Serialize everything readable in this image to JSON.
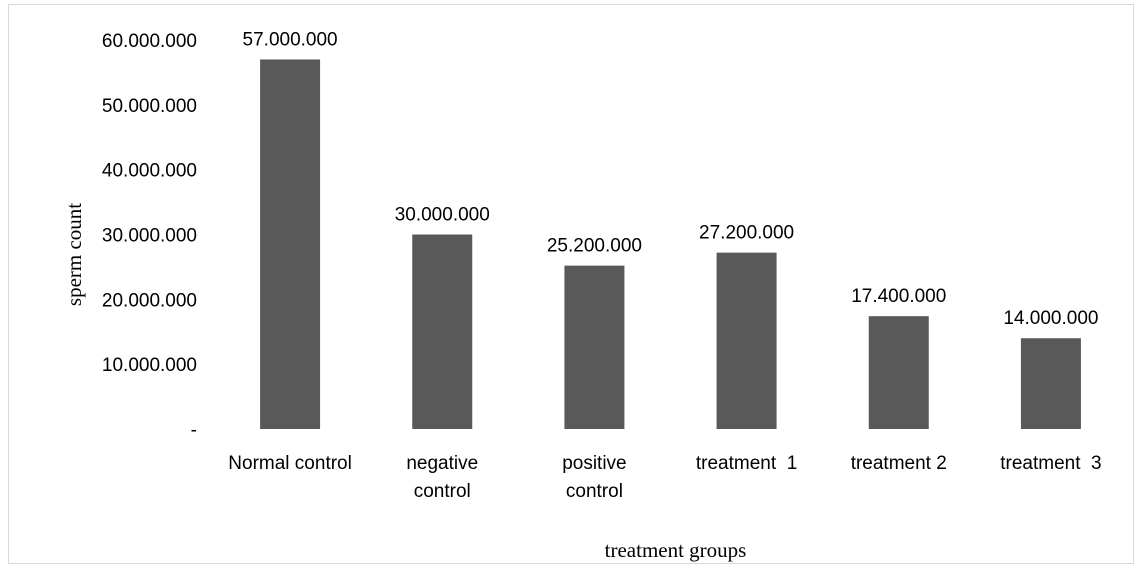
{
  "chart_data": {
    "type": "bar",
    "categories": [
      [
        "Normal control"
      ],
      [
        "negative",
        "control"
      ],
      [
        "positive",
        "control"
      ],
      [
        "treatment  1"
      ],
      [
        "treatment 2"
      ],
      [
        "treatment  3"
      ]
    ],
    "values": [
      57000000,
      30000000,
      25200000,
      27200000,
      17400000,
      14000000
    ],
    "data_labels": [
      "57.000.000",
      "30.000.000",
      "25.200.000",
      "27.200.000",
      "17.400.000",
      "14.000.000"
    ],
    "yticks": [
      0,
      10000000,
      20000000,
      30000000,
      40000000,
      50000000,
      60000000
    ],
    "ytick_labels": [
      "-",
      "10.000.000",
      "20.000.000",
      "30.000.000",
      "40.000.000",
      "50.000.000",
      "60.000.000"
    ],
    "ylim": [
      0,
      60000000
    ],
    "xlabel": "treatment groups",
    "ylabel": "sperm count",
    "bar_color": "#595959",
    "grid": false,
    "legend": "none"
  }
}
